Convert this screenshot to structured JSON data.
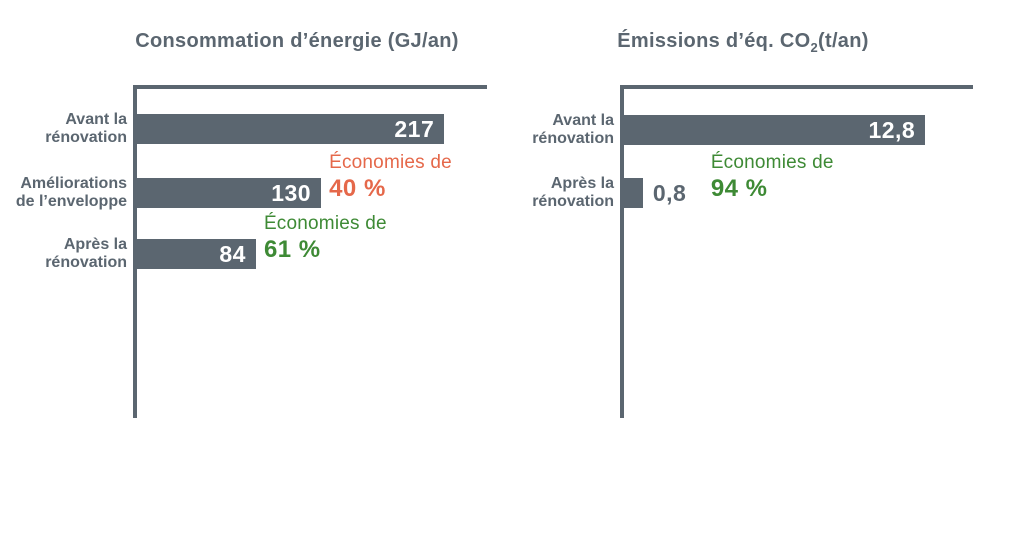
{
  "page": {
    "background": "#FFFFFF"
  },
  "colors": {
    "slate": "#5B6670",
    "orange": "#E5684A",
    "green": "#3E8A35",
    "bar_value_inside_text": "#FFFFFF"
  },
  "chart_data": [
    {
      "type": "bar",
      "orientation": "horizontal",
      "title": {
        "pre": "Consommation d’énergie (GJ/an)",
        "sub": "",
        "post": ""
      },
      "categories": [
        "Avant la rénovation",
        "Améliorations de l’enveloppe",
        "Après la rénovation"
      ],
      "category_label_lines": [
        [
          "Avant la",
          "rénovation"
        ],
        [
          "Améliorations",
          "de l’enveloppe"
        ],
        [
          "Après la",
          "rénovation"
        ]
      ],
      "values": [
        217,
        130,
        84
      ],
      "value_labels": [
        "217",
        "130",
        "84"
      ],
      "value_inside": [
        true,
        true,
        true
      ],
      "xlim": [
        0,
        250
      ],
      "bar_color": "#5B6670",
      "grid": false,
      "legend": false,
      "annotations": [
        null,
        {
          "line1": "Économies de",
          "line2": "40 %",
          "color": "#E5684A"
        },
        {
          "line1": "Économies de",
          "line2": "61 %",
          "color": "#3E8A35"
        }
      ]
    },
    {
      "type": "bar",
      "orientation": "horizontal",
      "title": {
        "pre": "Émissions d’éq. CO",
        "sub": "2",
        "post": "(t/an)"
      },
      "categories": [
        "Avant la rénovation",
        "Après la rénovation"
      ],
      "category_label_lines": [
        [
          "Avant la",
          "rénovation"
        ],
        [
          "Après la",
          "rénovation"
        ]
      ],
      "values": [
        12.8,
        0.8
      ],
      "value_labels": [
        "12,8",
        "0,8"
      ],
      "value_inside": [
        true,
        false
      ],
      "xlim": [
        0,
        15
      ],
      "bar_color": "#5B6670",
      "grid": false,
      "legend": false,
      "annotations": [
        null,
        {
          "line1": "Économies de",
          "line2": "94 %",
          "color": "#3E8A35"
        }
      ]
    }
  ]
}
